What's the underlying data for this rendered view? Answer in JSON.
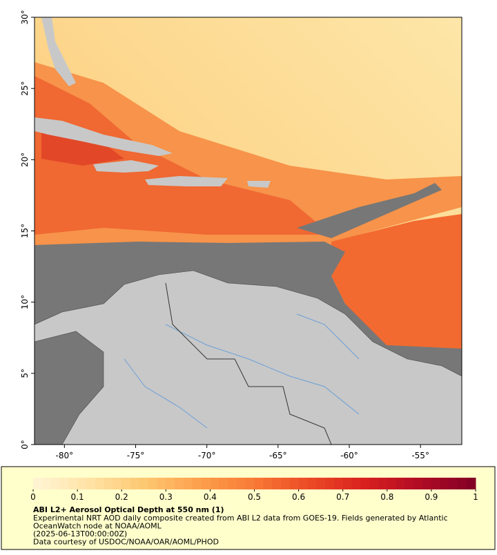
{
  "map": {
    "xlim": [
      -82.1,
      -52.1
    ],
    "ylim": [
      0,
      30
    ],
    "xticks": [
      {
        "value": -80,
        "label": "-80°"
      },
      {
        "value": -75,
        "label": "-75°"
      },
      {
        "value": -70,
        "label": "-70°"
      },
      {
        "value": -65,
        "label": "-65°"
      },
      {
        "value": -60,
        "label": "-60°"
      },
      {
        "value": -55,
        "label": "-55°"
      }
    ],
    "yticks": [
      {
        "value": 0,
        "label": "0°"
      },
      {
        "value": 5,
        "label": "5°"
      },
      {
        "value": 10,
        "label": "10°"
      },
      {
        "value": 15,
        "label": "15°"
      },
      {
        "value": 20,
        "label": "20°"
      },
      {
        "value": 25,
        "label": "25°"
      },
      {
        "value": 30,
        "label": "30°"
      }
    ]
  },
  "colorbar": {
    "lim": [
      0,
      1
    ],
    "ticks": [
      0,
      0.1,
      0.2,
      0.3,
      0.4,
      0.5,
      0.6,
      0.7,
      0.8,
      0.9,
      1
    ],
    "colors": [
      "#fff5d6",
      "#ffe3a6",
      "#fdc872",
      "#fca04c",
      "#f87a35",
      "#ec4a26",
      "#d8201f",
      "#b00b25",
      "#800026"
    ]
  },
  "legend": {
    "title": "ABI L2+ Aerosol Optical Depth at 550 nm (1)",
    "lines": [
      "Experimental NRT AOD daily composite created from ABI L2 data from GOES-19. Fields generated by Atlantic",
      "OceanWatch node at NOAA/AOML",
      "(2025-06-13T00:00:00Z)",
      "Data courtesy of USDOC/NOAA/OAR/AOML/PHOD"
    ]
  }
}
